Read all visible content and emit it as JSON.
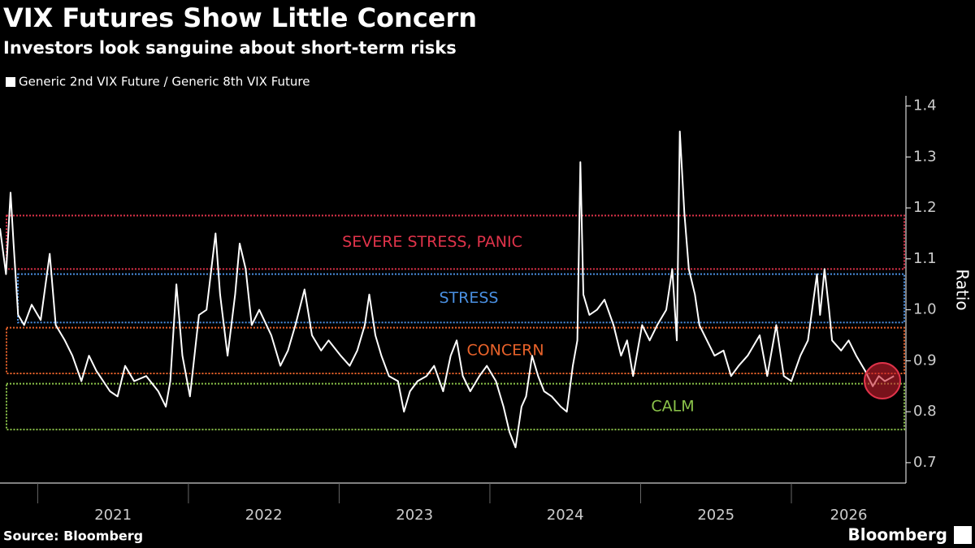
{
  "chart_data": {
    "type": "line",
    "title": "VIX Futures Show Little Concern",
    "subtitle": "Investors look sanguine about short-term risks",
    "y_label": "Ratio",
    "source": "Source: Bloomberg",
    "brand": "Bloomberg",
    "x": [
      2020.75,
      2020.79,
      2020.82,
      2020.84,
      2020.87,
      2020.91,
      2020.96,
      2021.02,
      2021.08,
      2021.12,
      2021.18,
      2021.23,
      2021.29,
      2021.34,
      2021.39,
      2021.48,
      2021.53,
      2021.58,
      2021.64,
      2021.72,
      2021.8,
      2021.85,
      2021.88,
      2021.92,
      2021.96,
      2022.01,
      2022.07,
      2022.12,
      2022.18,
      2022.21,
      2022.26,
      2022.31,
      2022.34,
      2022.38,
      2022.42,
      2022.47,
      2022.55,
      2022.61,
      2022.66,
      2022.71,
      2022.77,
      2022.82,
      2022.88,
      2022.93,
      2023.01,
      2023.07,
      2023.12,
      2023.17,
      2023.2,
      2023.24,
      2023.28,
      2023.33,
      2023.39,
      2023.43,
      2023.47,
      2023.52,
      2023.58,
      2023.63,
      2023.69,
      2023.74,
      2023.78,
      2023.82,
      2023.87,
      2023.93,
      2023.98,
      2024.04,
      2024.09,
      2024.13,
      2024.17,
      2024.21,
      2024.24,
      2024.28,
      2024.32,
      2024.36,
      2024.41,
      2024.47,
      2024.51,
      2024.55,
      2024.58,
      2024.6,
      2024.62,
      2024.66,
      2024.71,
      2024.76,
      2024.82,
      2024.87,
      2024.91,
      2024.95,
      2025.01,
      2025.06,
      2025.11,
      2025.17,
      2025.21,
      2025.24,
      2025.26,
      2025.29,
      2025.32,
      2025.36,
      2025.39,
      2025.44,
      2025.49,
      2025.55,
      2025.6,
      2025.65,
      2025.71,
      2025.79,
      2025.84,
      2025.9,
      2025.95,
      2026.0,
      2026.06,
      2026.11,
      2026.17,
      2026.19,
      2026.22,
      2026.25,
      2026.27,
      2026.33,
      2026.38,
      2026.43,
      2026.49,
      2026.54,
      2026.58,
      2026.62,
      2026.68
    ],
    "series": [
      {
        "name": "Generic 2nd VIX Future / Generic 8th VIX Future",
        "color": "#ffffff",
        "values": [
          1.16,
          1.07,
          1.23,
          1.13,
          0.99,
          0.97,
          1.01,
          0.98,
          1.11,
          0.97,
          0.94,
          0.91,
          0.86,
          0.91,
          0.88,
          0.84,
          0.83,
          0.89,
          0.86,
          0.87,
          0.84,
          0.81,
          0.86,
          1.05,
          0.91,
          0.83,
          0.99,
          1.0,
          1.15,
          1.03,
          0.91,
          1.03,
          1.13,
          1.08,
          0.97,
          1.0,
          0.95,
          0.89,
          0.92,
          0.97,
          1.04,
          0.95,
          0.92,
          0.94,
          0.91,
          0.89,
          0.92,
          0.97,
          1.03,
          0.95,
          0.91,
          0.87,
          0.86,
          0.8,
          0.84,
          0.86,
          0.87,
          0.89,
          0.84,
          0.91,
          0.94,
          0.87,
          0.84,
          0.87,
          0.89,
          0.86,
          0.81,
          0.76,
          0.73,
          0.81,
          0.83,
          0.91,
          0.87,
          0.84,
          0.83,
          0.81,
          0.8,
          0.89,
          0.94,
          1.29,
          1.03,
          0.99,
          1.0,
          1.02,
          0.97,
          0.91,
          0.94,
          0.87,
          0.97,
          0.94,
          0.97,
          1.0,
          1.08,
          0.94,
          1.35,
          1.19,
          1.08,
          1.03,
          0.97,
          0.94,
          0.91,
          0.92,
          0.87,
          0.89,
          0.91,
          0.95,
          0.87,
          0.97,
          0.87,
          0.86,
          0.91,
          0.94,
          1.07,
          0.99,
          1.08,
          1.0,
          0.94,
          0.92,
          0.94,
          0.91,
          0.88,
          0.85,
          0.87,
          0.86,
          0.87
        ]
      }
    ],
    "bands": [
      {
        "label": "SEVERE STRESS, PANIC",
        "color": "#e0334a",
        "range": [
          1.08,
          1.185
        ]
      },
      {
        "label": "STRESS",
        "color": "#4a90e2",
        "range": [
          0.975,
          1.07
        ]
      },
      {
        "label": "CONCERN",
        "color": "#e8622a",
        "range": [
          0.875,
          0.965
        ]
      },
      {
        "label": "CALM",
        "color": "#8bc34a",
        "range": [
          0.765,
          0.855
        ]
      }
    ],
    "xlim": [
      2020.75,
      2026.76
    ],
    "xticks": [
      2021,
      2022,
      2023,
      2024,
      2025,
      2026
    ],
    "ylim": [
      0.66,
      1.42
    ],
    "yticks": [
      0.7,
      0.8,
      0.9,
      {
        "value": 1,
        "label": "1.0"
      },
      1.1,
      1.2,
      1.3,
      1.4
    ],
    "grid": false
  }
}
